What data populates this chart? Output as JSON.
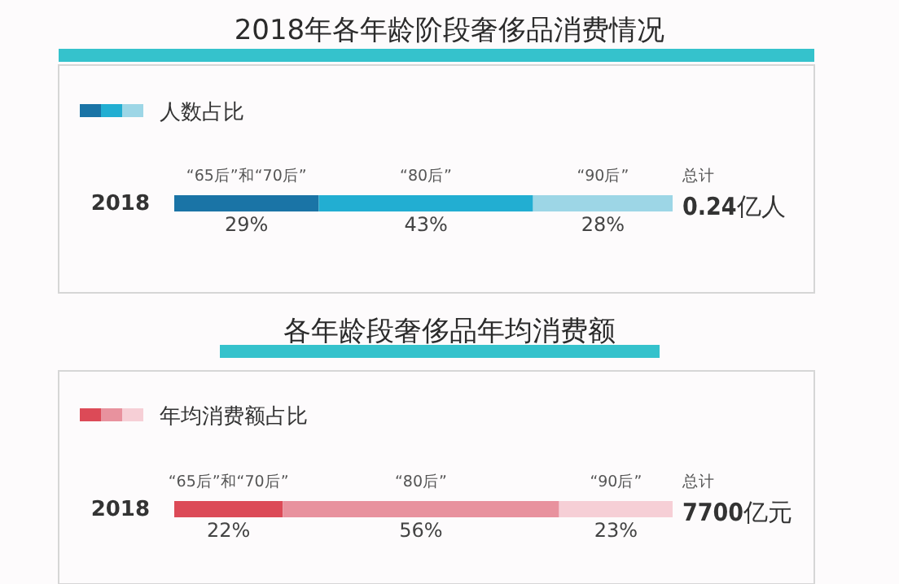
{
  "chart_data": [
    {
      "type": "bar",
      "orientation": "horizontal",
      "stacked": true,
      "title": "2018年各年龄阶段奢侈品消费情况",
      "legend_title": "人数占比",
      "legend": "top left",
      "categories": [
        "2018"
      ],
      "series": [
        {
          "name": "“65后”和“70后”",
          "color": "#1a74a6",
          "values": [
            29
          ],
          "value_labels": [
            "29%"
          ]
        },
        {
          "name": "“80后”",
          "color": "#22aed2",
          "values": [
            43
          ],
          "value_labels": [
            "43%"
          ]
        },
        {
          "name": "“90后”",
          "color": "#9dd6e6",
          "values": [
            28
          ],
          "value_labels": [
            "28%"
          ]
        }
      ],
      "annotations": [
        "总计",
        "**0.24**亿人"
      ]
    },
    {
      "type": "bar",
      "orientation": "horizontal",
      "stacked": true,
      "title": "各年龄段奢侈品年均消费额",
      "legend_title": "年均消费额占比",
      "legend": "top left",
      "categories": [
        "2018"
      ],
      "series": [
        {
          "name": "“65后”和“70后”",
          "color": "#dc4a57",
          "values": [
            22
          ],
          "value_labels": [
            "22%"
          ]
        },
        {
          "name": "“80后”",
          "color": "#e8929e",
          "values": [
            56
          ],
          "value_labels": [
            "56%"
          ]
        },
        {
          "name": "“90后”",
          "color": "#f6cfd6",
          "values": [
            23
          ],
          "value_labels": [
            "23%"
          ]
        }
      ],
      "annotations": [
        "总计",
        "**7700**亿元"
      ]
    }
  ]
}
